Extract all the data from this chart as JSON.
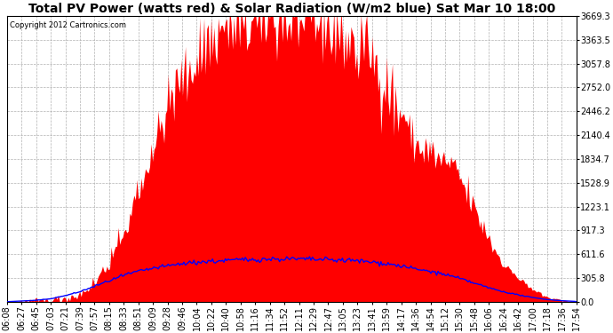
{
  "title": "Total PV Power (watts red) & Solar Radiation (W/m2 blue) Sat Mar 10 18:00",
  "copyright_text": "Copyright 2012 Cartronics.com",
  "y_ticks": [
    0.0,
    305.8,
    611.6,
    917.3,
    1223.1,
    1528.9,
    1834.7,
    2140.4,
    2446.2,
    2752.0,
    3057.8,
    3363.5,
    3669.3
  ],
  "x_labels": [
    "06:08",
    "06:27",
    "06:45",
    "07:03",
    "07:21",
    "07:39",
    "07:57",
    "08:15",
    "08:33",
    "08:51",
    "09:09",
    "09:28",
    "09:46",
    "10:04",
    "10:22",
    "10:40",
    "10:58",
    "11:16",
    "11:34",
    "11:52",
    "12:11",
    "12:29",
    "12:47",
    "13:05",
    "13:23",
    "13:41",
    "13:59",
    "14:17",
    "14:36",
    "14:54",
    "15:12",
    "15:30",
    "15:48",
    "16:06",
    "16:24",
    "16:42",
    "17:00",
    "17:18",
    "17:36",
    "17:54"
  ],
  "bg_color": "#ffffff",
  "plot_bg_color": "#ffffff",
  "grid_color": "#b0b0b0",
  "fill_color": "#ff0000",
  "line_color": "#0000ff",
  "title_fontsize": 10,
  "tick_fontsize": 7,
  "ymax": 3669.3,
  "ymin": 0.0,
  "pv_keypoints_x": [
    0,
    1,
    2,
    3,
    4,
    5,
    6,
    7,
    8,
    9,
    10,
    11,
    12,
    13,
    14,
    15,
    16,
    17,
    18,
    19,
    20,
    21,
    22,
    23,
    24,
    25,
    26,
    27,
    28,
    29,
    30,
    31,
    32,
    33,
    34,
    35,
    36,
    37,
    38,
    39
  ],
  "pv_keypoints_y": [
    0,
    5,
    10,
    20,
    50,
    100,
    250,
    500,
    900,
    1400,
    2000,
    2500,
    2900,
    3200,
    3400,
    3500,
    3550,
    3600,
    3669,
    3650,
    3600,
    3550,
    3500,
    3450,
    3300,
    3100,
    2800,
    2400,
    2000,
    1900,
    1800,
    1600,
    1200,
    800,
    500,
    300,
    150,
    60,
    20,
    5
  ],
  "solar_keypoints_x": [
    0,
    1,
    2,
    3,
    4,
    5,
    6,
    7,
    8,
    9,
    10,
    11,
    12,
    13,
    14,
    15,
    16,
    17,
    18,
    19,
    20,
    21,
    22,
    23,
    24,
    25,
    26,
    27,
    28,
    29,
    30,
    31,
    32,
    33,
    34,
    35,
    36,
    37,
    38,
    39
  ],
  "solar_keypoints_y": [
    2,
    10,
    20,
    40,
    80,
    130,
    200,
    270,
    340,
    390,
    430,
    460,
    490,
    510,
    520,
    530,
    540,
    545,
    548,
    550,
    548,
    545,
    540,
    535,
    525,
    510,
    490,
    460,
    420,
    390,
    350,
    300,
    240,
    180,
    130,
    90,
    55,
    30,
    15,
    5
  ]
}
